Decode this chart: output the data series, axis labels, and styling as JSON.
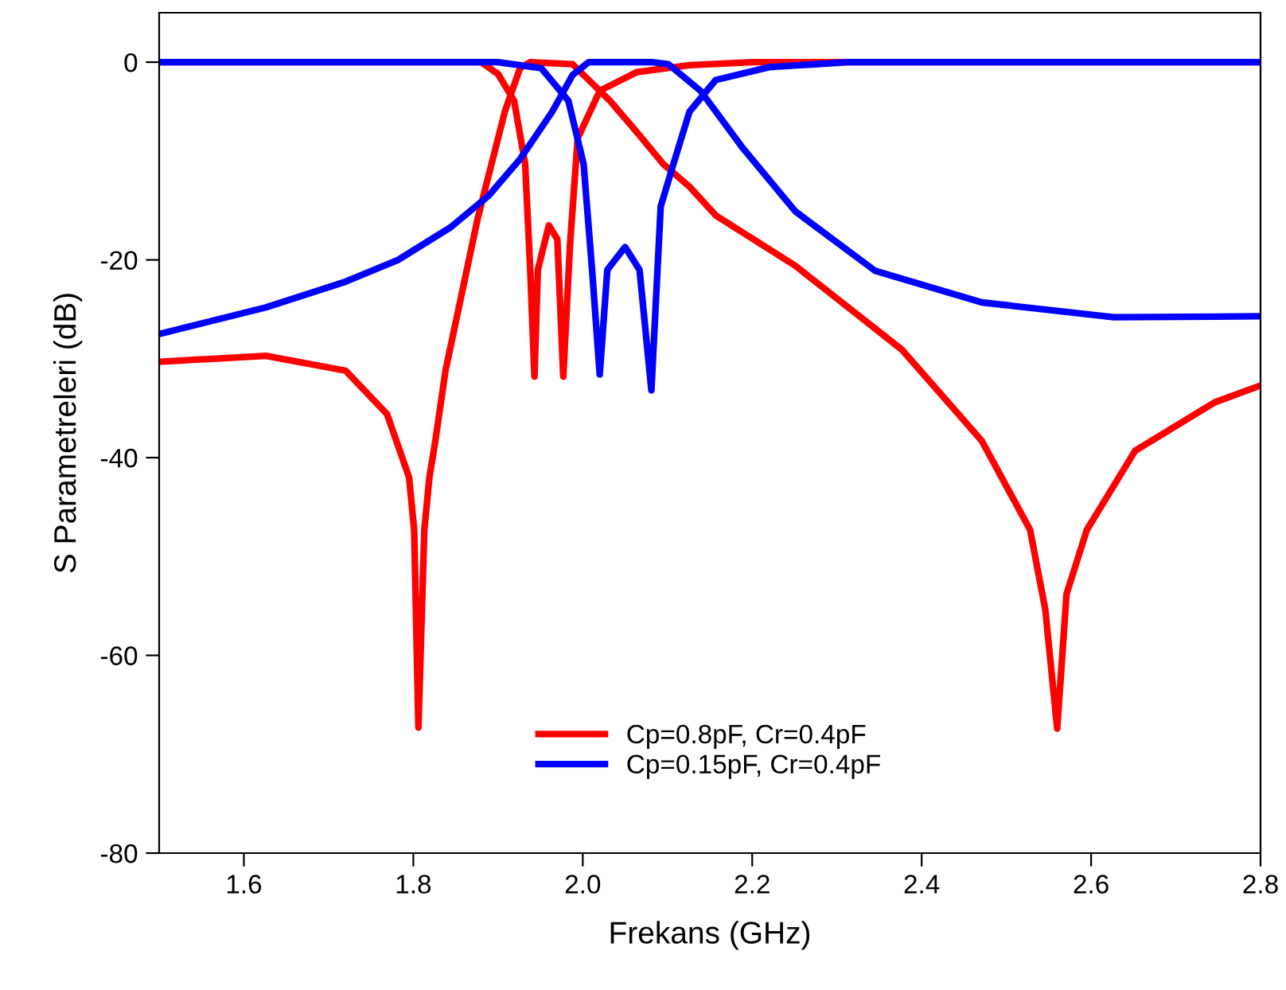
{
  "chart_data": {
    "type": "line",
    "xlabel": "Frekans (GHz)",
    "ylabel": "S Parametreleri (dB)",
    "xlim": [
      1.5,
      2.8
    ],
    "ylim": [
      -80,
      5
    ],
    "xticks": [
      {
        "value": 1.6,
        "label": "1.6"
      },
      {
        "value": 1.8,
        "label": "1.8"
      },
      {
        "value": 2.0,
        "label": "2.0"
      },
      {
        "value": 2.2,
        "label": "2.2"
      },
      {
        "value": 2.4,
        "label": "2.4"
      },
      {
        "value": 2.6,
        "label": "2.6"
      },
      {
        "value": 2.8,
        "label": "2.8"
      }
    ],
    "yticks": [
      -80,
      -60,
      -40,
      -20,
      0
    ],
    "grid": false,
    "legend": "bottom",
    "marker": "none",
    "line_style": "solid",
    "series": [
      {
        "name": "Cp=0.8pF, Cr=0.4pF",
        "color": "#ff0000",
        "x": [
          1.5,
          1.626,
          1.72,
          1.769,
          1.795,
          1.801,
          1.806,
          1.813,
          1.819,
          1.826,
          1.838,
          1.876,
          1.908,
          1.926,
          1.938,
          1.988,
          2.032,
          2.064,
          2.095,
          2.126,
          2.157,
          2.251,
          2.377,
          2.471,
          2.528,
          2.546,
          2.56,
          2.571,
          2.595,
          2.652,
          2.746,
          2.8
        ],
        "values": [
          -30.3,
          -29.7,
          -31.2,
          -35.6,
          -42,
          -47.3,
          -67.3,
          -47.3,
          -42,
          -38.3,
          -31.2,
          -15.8,
          -5,
          -0.6,
          0,
          -0.2,
          -3.9,
          -7.1,
          -10.3,
          -12.6,
          -15.5,
          -20.6,
          -29.1,
          -38.3,
          -47.3,
          -55.4,
          -67.4,
          -53.8,
          -47.3,
          -39.3,
          -34.4,
          -32.7
        ]
      },
      {
        "color": "#ff0000",
        "x": [
          1.5,
          1.8,
          1.88,
          1.9,
          1.919,
          1.932,
          1.938,
          1.943,
          1.947,
          1.96,
          1.97,
          1.977,
          1.985,
          1.994,
          2.02,
          2.064,
          2.126,
          2.2,
          2.8
        ],
        "values": [
          0,
          0,
          0,
          -1.2,
          -3.9,
          -10.3,
          -21,
          -31.8,
          -21,
          -16.5,
          -17.9,
          -31.8,
          -18.4,
          -7.7,
          -2.9,
          -1,
          -0.3,
          0,
          0
        ]
      },
      {
        "name": "Cp=0.15pF, Cr=0.4pF",
        "color": "#0000ff",
        "x": [
          1.5,
          1.626,
          1.72,
          1.782,
          1.844,
          1.889,
          1.926,
          1.964,
          1.988,
          2.007,
          2.082,
          2.101,
          2.139,
          2.189,
          2.251,
          2.345,
          2.471,
          2.627,
          2.8
        ],
        "values": [
          -27.5,
          -24.8,
          -22.2,
          -20,
          -16.7,
          -13.5,
          -9.8,
          -5,
          -1.3,
          0,
          0,
          -0.2,
          -2.9,
          -8.7,
          -15.1,
          -21.1,
          -24.3,
          -25.8,
          -25.7
        ]
      },
      {
        "color": "#0000ff",
        "x": [
          1.5,
          1.9,
          1.951,
          1.983,
          2.001,
          2.011,
          2.02,
          2.029,
          2.05,
          2.067,
          2.081,
          2.092,
          2.107,
          2.126,
          2.157,
          2.22,
          2.313,
          2.8
        ],
        "values": [
          0,
          0,
          -0.6,
          -3.9,
          -10.3,
          -21,
          -31.6,
          -21,
          -18.7,
          -21,
          -33.2,
          -14.6,
          -10.3,
          -5,
          -1.8,
          -0.5,
          0,
          0
        ]
      }
    ]
  }
}
